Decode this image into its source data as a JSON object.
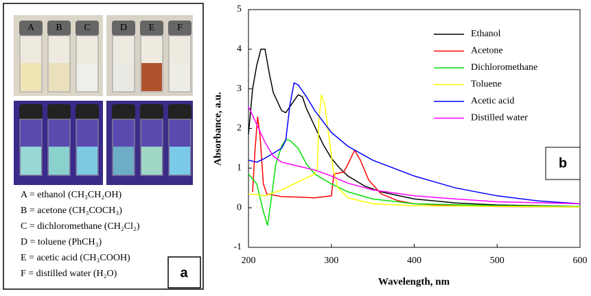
{
  "panel_a": {
    "legend_lines": [
      "A = ethanol (CH₃CH₂OH)",
      "B = acetone (CH₃COCH₃)",
      "C = dichloromethane (CH₂Cl₂)",
      "D = toluene (PhCH₃)",
      "E = acetic acid (CH₃COOH)",
      "F = distilled water (H₂O)"
    ],
    "vial_labels": [
      "A",
      "B",
      "C",
      "D",
      "E",
      "F"
    ],
    "panel_label": "a"
  },
  "chart_data": {
    "type": "line",
    "panel_label": "b",
    "xlabel": "Wavelength, nm",
    "ylabel": "Absorbance, a.u.",
    "xlim": [
      200,
      600
    ],
    "ylim": [
      -1,
      5
    ],
    "xticks": [
      200,
      300,
      400,
      500,
      600
    ],
    "yticks": [
      -1,
      0,
      1,
      2,
      3,
      4,
      5
    ],
    "series": [
      {
        "name": "Ethanol",
        "color": "#000000",
        "x": [
          200,
          205,
          210,
          215,
          220,
          225,
          230,
          240,
          245,
          250,
          260,
          265,
          270,
          280,
          290,
          300,
          310,
          320,
          340,
          360,
          400,
          450,
          500,
          550,
          600
        ],
        "values": [
          1.85,
          3.0,
          3.6,
          4.0,
          4.0,
          3.4,
          2.9,
          2.45,
          2.4,
          2.55,
          2.85,
          2.8,
          2.5,
          2.05,
          1.6,
          1.25,
          1.0,
          0.8,
          0.55,
          0.4,
          0.22,
          0.12,
          0.07,
          0.05,
          0.03
        ]
      },
      {
        "name": "Acetone",
        "color": "#ff0000",
        "x": [
          205,
          208,
          211,
          214,
          218,
          222,
          240,
          260,
          280,
          300,
          303,
          315,
          320,
          328,
          335,
          345,
          360,
          380,
          400,
          450,
          500,
          600
        ],
        "values": [
          0.4,
          1.5,
          2.3,
          1.8,
          0.6,
          0.35,
          0.28,
          0.27,
          0.25,
          0.3,
          0.85,
          0.9,
          1.1,
          1.45,
          1.2,
          0.7,
          0.35,
          0.18,
          0.1,
          0.05,
          0.03,
          0.02
        ]
      },
      {
        "name": "Dichloromethane",
        "color": "#00e000",
        "x": [
          200,
          210,
          218,
          223,
          228,
          233,
          240,
          245,
          250,
          260,
          270,
          280,
          300,
          320,
          350,
          400,
          500,
          600
        ],
        "values": [
          0.85,
          0.6,
          -0.1,
          -0.45,
          0.3,
          1.1,
          1.55,
          1.72,
          1.7,
          1.5,
          1.1,
          0.85,
          0.6,
          0.4,
          0.22,
          0.1,
          0.05,
          0.03
        ]
      },
      {
        "name": "Toluene",
        "color": "#ffff00",
        "x": [
          200,
          220,
          240,
          260,
          280,
          283,
          285,
          288,
          292,
          297,
          302,
          308,
          320,
          350,
          400,
          600
        ],
        "values": [
          0.35,
          0.3,
          0.45,
          0.65,
          0.85,
          1.0,
          2.2,
          2.85,
          2.6,
          1.8,
          1.0,
          0.5,
          0.25,
          0.1,
          0.05,
          0.02
        ]
      },
      {
        "name": "Acetic acid",
        "color": "#0000ff",
        "x": [
          200,
          210,
          220,
          240,
          245,
          250,
          255,
          260,
          270,
          280,
          300,
          320,
          350,
          400,
          450,
          500,
          550,
          600
        ],
        "values": [
          1.2,
          1.15,
          1.25,
          1.5,
          1.7,
          2.6,
          3.15,
          3.1,
          2.8,
          2.45,
          1.9,
          1.55,
          1.2,
          0.8,
          0.5,
          0.3,
          0.17,
          0.1
        ]
      },
      {
        "name": "Distilled water",
        "color": "#ff00ff",
        "x": [
          200,
          210,
          220,
          230,
          240,
          260,
          280,
          300,
          320,
          350,
          400,
          450,
          500,
          600
        ],
        "values": [
          2.55,
          2.1,
          1.65,
          1.3,
          1.15,
          1.05,
          0.95,
          0.8,
          0.62,
          0.45,
          0.3,
          0.22,
          0.15,
          0.1
        ]
      }
    ]
  }
}
